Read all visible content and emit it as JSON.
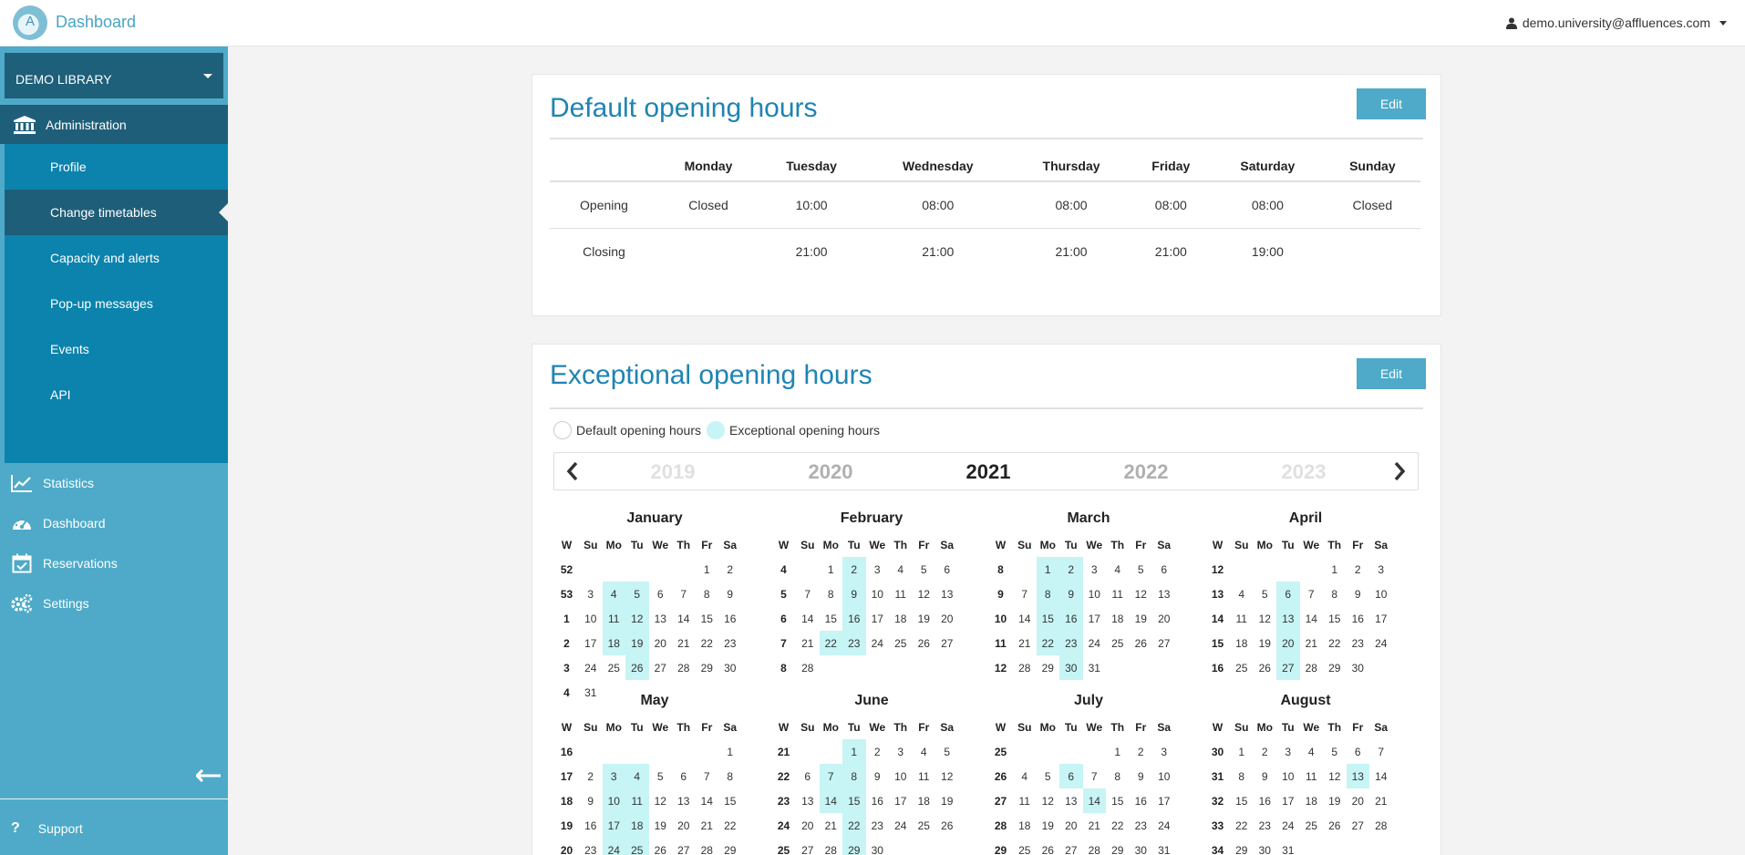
{
  "header": {
    "app_title": "Dashboard",
    "logo_letter": "A",
    "user_email": "demo.university@affluences.com"
  },
  "sidebar": {
    "library_select": "DEMO LIBRARY",
    "admin_label": "Administration",
    "sub_items": [
      "Profile",
      "Change timetables",
      "Capacity and alerts",
      "Pop-up messages",
      "Events",
      "API"
    ],
    "active_sub_item": "Change timetables",
    "nav_items": [
      {
        "label": "Statistics",
        "icon": "chart-line-icon"
      },
      {
        "label": "Dashboard",
        "icon": "dashboard-gauge-icon"
      },
      {
        "label": "Reservations",
        "icon": "calendar-check-icon"
      },
      {
        "label": "Settings",
        "icon": "gears-icon"
      }
    ],
    "collapse_icon": "arrow-left-icon",
    "support_label": "Support"
  },
  "default_hours": {
    "title": "Default opening hours",
    "edit_label": "Edit",
    "days": [
      "Monday",
      "Tuesday",
      "Wednesday",
      "Thursday",
      "Friday",
      "Saturday",
      "Sunday"
    ],
    "rows": [
      {
        "label": "Opening",
        "values": [
          "Closed",
          "10:00",
          "08:00",
          "08:00",
          "08:00",
          "08:00",
          "Closed"
        ]
      },
      {
        "label": "Closing",
        "values": [
          "",
          "21:00",
          "21:00",
          "21:00",
          "21:00",
          "19:00",
          ""
        ]
      }
    ]
  },
  "exceptional_hours": {
    "title": "Exceptional opening hours",
    "edit_label": "Edit",
    "legend_default": "Default opening hours",
    "legend_exceptional": "Exceptional opening hours",
    "years": [
      "2019",
      "2020",
      "2021",
      "2022",
      "2023"
    ],
    "selected_year": "2021",
    "day_headers": [
      "W",
      "Su",
      "Mo",
      "Tu",
      "We",
      "Th",
      "Fr",
      "Sa"
    ],
    "months": [
      {
        "name": "January",
        "weeks": [
          52,
          53,
          1,
          2,
          3,
          4
        ],
        "start": 5,
        "days": 31,
        "highlight": [
          4,
          5,
          11,
          12,
          18,
          19,
          26
        ]
      },
      {
        "name": "February",
        "weeks": [
          4,
          5,
          6,
          7,
          8
        ],
        "start": 1,
        "days": 28,
        "highlight": [
          2,
          9,
          16,
          22,
          23
        ]
      },
      {
        "name": "March",
        "weeks": [
          8,
          9,
          10,
          11,
          12
        ],
        "start": 1,
        "days": 31,
        "highlight": [
          1,
          2,
          8,
          9,
          15,
          16,
          22,
          23,
          30
        ]
      },
      {
        "name": "April",
        "weeks": [
          12,
          13,
          14,
          15,
          16
        ],
        "start": 4,
        "days": 30,
        "highlight": [
          6,
          13,
          20,
          27
        ]
      },
      {
        "name": "May",
        "weeks": [
          16,
          17,
          18,
          19,
          20
        ],
        "start": 6,
        "days": 29,
        "highlight": [
          3,
          4,
          10,
          11,
          17,
          18,
          24,
          25
        ]
      },
      {
        "name": "June",
        "weeks": [
          21,
          22,
          23,
          24,
          25
        ],
        "start": 2,
        "days": 30,
        "highlight": [
          1,
          7,
          8,
          14,
          15,
          22,
          29
        ]
      },
      {
        "name": "July",
        "weeks": [
          25,
          26,
          27,
          28,
          29
        ],
        "start": 4,
        "days": 31,
        "highlight": [
          6,
          14
        ]
      },
      {
        "name": "August",
        "weeks": [
          30,
          31,
          32,
          33,
          34
        ],
        "start": 0,
        "days": 31,
        "highlight": [
          13
        ]
      }
    ]
  }
}
